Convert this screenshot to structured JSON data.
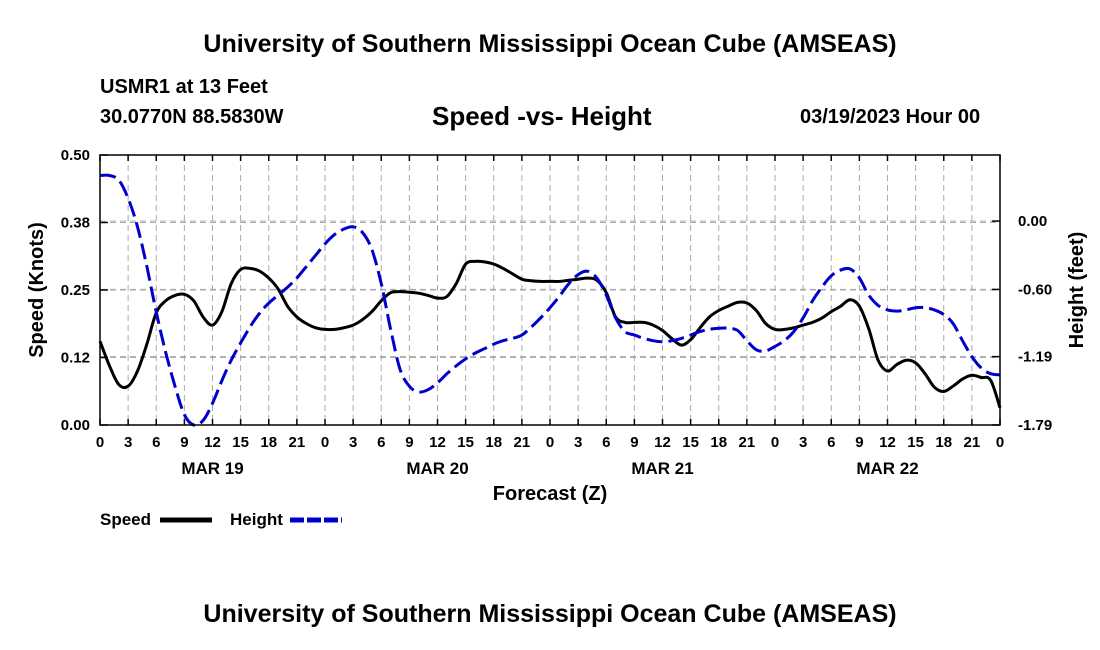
{
  "page": {
    "title": "University of Southern Mississippi Ocean Cube (AMSEAS)",
    "station": "USMR1 at 13 Feet",
    "coords": "30.0770N  88.5830W",
    "plot_title": "Speed -vs- Height",
    "run_time": "03/19/2023 Hour 00",
    "footer_title": "University of Southern Mississippi Ocean Cube (AMSEAS)"
  },
  "chart_data": {
    "type": "line",
    "title": "Speed -vs- Height",
    "xlabel": "Forecast (Z)",
    "ylabel": "Speed (Knots)",
    "y2label": "Height (feet)",
    "x_range": [
      0,
      96
    ],
    "ylim": [
      0,
      0.5
    ],
    "y2lim": [
      -1.79,
      0.58
    ],
    "grid": true,
    "x_ticks": [
      0,
      3,
      6,
      9,
      12,
      15,
      18,
      21,
      24,
      27,
      30,
      33,
      36,
      39,
      42,
      45,
      48,
      51,
      54,
      57,
      60,
      63,
      66,
      69,
      72,
      75,
      78,
      81,
      84,
      87,
      90,
      93,
      96
    ],
    "x_tick_labels": [
      "0",
      "3",
      "6",
      "9",
      "12",
      "15",
      "18",
      "21",
      "0",
      "3",
      "6",
      "9",
      "12",
      "15",
      "18",
      "21",
      "0",
      "3",
      "6",
      "9",
      "12",
      "15",
      "18",
      "21",
      "0",
      "3",
      "6",
      "9",
      "12",
      "15",
      "18",
      "21",
      "0"
    ],
    "date_labels": [
      {
        "x": 12,
        "label": "MAR 19"
      },
      {
        "x": 36,
        "label": "MAR 20"
      },
      {
        "x": 60,
        "label": "MAR 21"
      },
      {
        "x": 84,
        "label": "MAR 22"
      }
    ],
    "y_ticks": [
      0.0,
      0.125,
      0.25,
      0.375,
      0.5
    ],
    "y_tick_labels": [
      "0.00",
      "0.12",
      "0.25",
      "0.38",
      "0.50"
    ],
    "y2_ticks": [
      0.0,
      -0.6,
      -1.19,
      -1.79
    ],
    "y2_tick_labels": [
      "0.00",
      "-0.60",
      "-1.19",
      "-1.79"
    ],
    "legend": [
      {
        "name": "Speed",
        "color": "#000000",
        "style": "solid"
      },
      {
        "name": "Height",
        "color": "#0000cc",
        "style": "dashed"
      }
    ],
    "series": [
      {
        "name": "Speed",
        "axis": "left",
        "color": "#000000",
        "dash": "solid",
        "x": [
          0,
          1,
          2,
          3,
          4,
          5,
          6,
          7,
          8,
          9,
          10,
          11,
          12,
          13,
          14,
          15,
          16,
          17,
          18,
          19,
          20,
          21,
          22,
          23,
          24,
          25,
          26,
          27,
          28,
          29,
          30,
          31,
          32,
          33,
          34,
          35,
          36,
          37,
          38,
          39,
          40,
          41,
          42,
          43,
          44,
          45,
          46,
          47,
          48,
          49,
          50,
          51,
          52,
          53,
          54,
          55,
          56,
          57,
          58,
          59,
          60,
          61,
          62,
          63,
          64,
          65,
          66,
          67,
          68,
          69,
          70,
          71,
          72,
          73,
          74,
          75,
          76,
          77,
          78,
          79,
          80,
          81,
          82,
          83,
          84,
          85,
          86,
          87,
          88,
          89,
          90,
          91,
          92,
          93,
          94,
          95,
          96
        ],
        "values": [
          0.155,
          0.11,
          0.075,
          0.072,
          0.1,
          0.15,
          0.208,
          0.23,
          0.24,
          0.242,
          0.23,
          0.2,
          0.185,
          0.21,
          0.262,
          0.288,
          0.29,
          0.285,
          0.272,
          0.252,
          0.22,
          0.2,
          0.188,
          0.18,
          0.177,
          0.177,
          0.18,
          0.185,
          0.195,
          0.21,
          0.23,
          0.245,
          0.247,
          0.246,
          0.244,
          0.24,
          0.235,
          0.238,
          0.262,
          0.298,
          0.303,
          0.302,
          0.298,
          0.29,
          0.28,
          0.27,
          0.267,
          0.266,
          0.266,
          0.266,
          0.268,
          0.27,
          0.272,
          0.268,
          0.245,
          0.2,
          0.19,
          0.19,
          0.19,
          0.185,
          0.175,
          0.16,
          0.148,
          0.158,
          0.18,
          0.2,
          0.212,
          0.22,
          0.227,
          0.226,
          0.212,
          0.188,
          0.177,
          0.177,
          0.18,
          0.185,
          0.19,
          0.198,
          0.21,
          0.22,
          0.232,
          0.22,
          0.178,
          0.12,
          0.1,
          0.112,
          0.12,
          0.115,
          0.095,
          0.07,
          0.062,
          0.072,
          0.085,
          0.092,
          0.088,
          0.083,
          0.032
        ]
      },
      {
        "name": "Height",
        "axis": "right",
        "color": "#0000cc",
        "dash": "dashed",
        "x": [
          0,
          1,
          2,
          3,
          4,
          5,
          6,
          7,
          8,
          9,
          10,
          11,
          12,
          13,
          14,
          15,
          16,
          17,
          18,
          19,
          20,
          21,
          22,
          23,
          24,
          25,
          26,
          27,
          28,
          29,
          30,
          31,
          32,
          33,
          34,
          35,
          36,
          37,
          38,
          39,
          40,
          41,
          42,
          43,
          44,
          45,
          46,
          47,
          48,
          49,
          50,
          51,
          52,
          53,
          54,
          55,
          56,
          57,
          58,
          59,
          60,
          61,
          62,
          63,
          64,
          65,
          66,
          67,
          68,
          69,
          70,
          71,
          72,
          73,
          74,
          75,
          76,
          77,
          78,
          79,
          80,
          81,
          82,
          83,
          84,
          85,
          86,
          87,
          88,
          89,
          90,
          91,
          92,
          93,
          94,
          95,
          96
        ],
        "values": [
          0.4,
          0.4,
          0.36,
          0.2,
          -0.05,
          -0.4,
          -0.8,
          -1.15,
          -1.45,
          -1.7,
          -1.79,
          -1.75,
          -1.6,
          -1.4,
          -1.22,
          -1.07,
          -0.93,
          -0.81,
          -0.72,
          -0.65,
          -0.58,
          -0.5,
          -0.4,
          -0.3,
          -0.2,
          -0.12,
          -0.07,
          -0.05,
          -0.1,
          -0.25,
          -0.55,
          -0.95,
          -1.3,
          -1.45,
          -1.5,
          -1.48,
          -1.42,
          -1.34,
          -1.27,
          -1.21,
          -1.16,
          -1.12,
          -1.08,
          -1.05,
          -1.03,
          -1.0,
          -0.93,
          -0.85,
          -0.76,
          -0.66,
          -0.55,
          -0.47,
          -0.44,
          -0.5,
          -0.65,
          -0.85,
          -0.97,
          -1.0,
          -1.03,
          -1.05,
          -1.06,
          -1.05,
          -1.03,
          -1.0,
          -0.97,
          -0.95,
          -0.94,
          -0.94,
          -0.96,
          -1.05,
          -1.13,
          -1.14,
          -1.1,
          -1.05,
          -0.97,
          -0.85,
          -0.7,
          -0.58,
          -0.48,
          -0.43,
          -0.42,
          -0.5,
          -0.65,
          -0.74,
          -0.78,
          -0.79,
          -0.78,
          -0.76,
          -0.76,
          -0.78,
          -0.82,
          -0.9,
          -1.05,
          -1.19,
          -1.29,
          -1.34,
          -1.35
        ]
      }
    ]
  }
}
